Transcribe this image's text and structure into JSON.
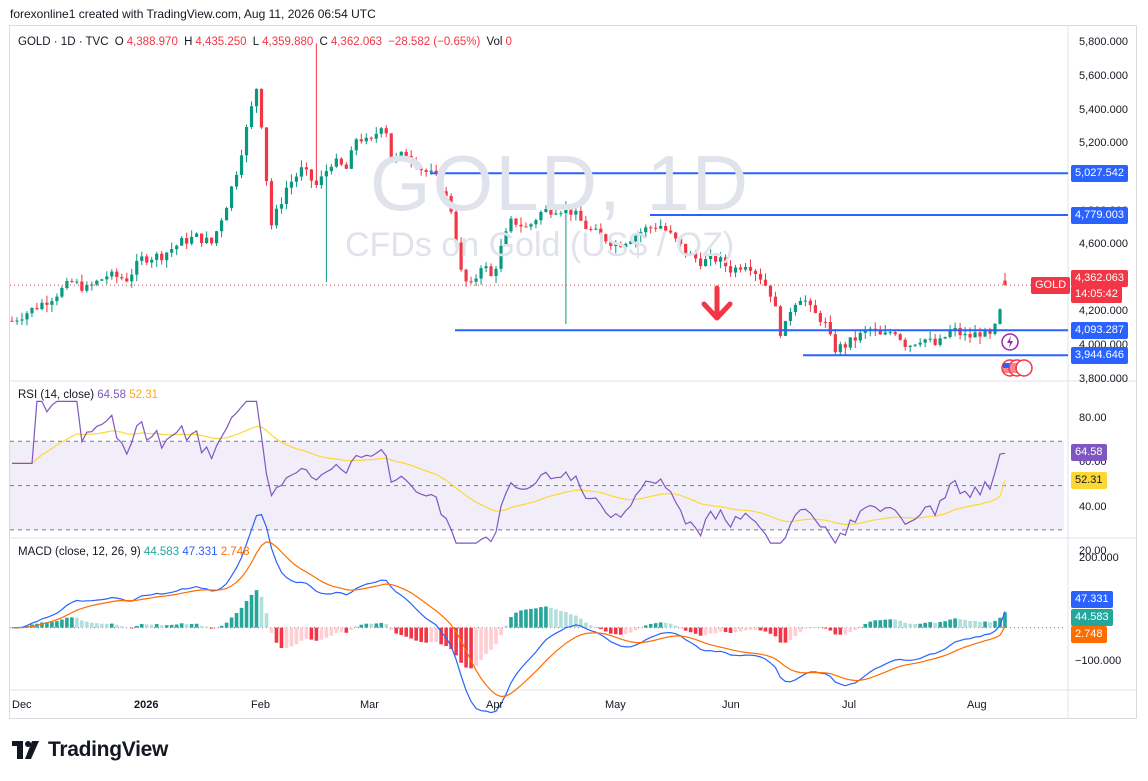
{
  "credit": "forexonline1 created with TradingView.com, Aug 11, 2026 06:54 UTC",
  "watermark": {
    "line1": "GOLD, 1D",
    "line2": "CFDs on Gold (US$ / OZ)"
  },
  "legend": {
    "symbol": "GOLD · 1D · TVC",
    "o_label": "O",
    "o_value": "4,388.970",
    "h_label": "H",
    "h_value": "4,435.250",
    "l_label": "L",
    "l_value": "4,359.880",
    "c_label": "C",
    "c_value": "4,362.063",
    "change": "−28.582 (−0.65%)",
    "vol_label": "Vol",
    "vol_value": "0"
  },
  "price_axis": {
    "ticks": [
      "5,800.000",
      "5,600.000",
      "5,400.000",
      "5,200.000",
      "4,800.000",
      "4,600.000",
      "4,400.000",
      "4,200.000",
      "4,000.000",
      "3,800.000"
    ],
    "levels": [
      {
        "label": "5,027.542",
        "color": "#2962ff"
      },
      {
        "label": "4,779.003",
        "color": "#2962ff"
      },
      {
        "label": "4,093.287",
        "color": "#2962ff"
      },
      {
        "label": "3,944.646",
        "color": "#2962ff"
      }
    ],
    "current": {
      "symbol": "GOLD",
      "price": "4,362.063",
      "countdown": "14:05:42",
      "color": "#f23645"
    }
  },
  "rsi": {
    "legend_name": "RSI (14, close)",
    "value": "64.58",
    "ma_value": "52.31",
    "ticks": [
      "80.00",
      "60.00",
      "40.00",
      "20.00"
    ],
    "colors": {
      "rsi": "#7e57c2",
      "ma": "#fdd835"
    }
  },
  "macd": {
    "legend_name": "MACD (close, 12, 26, 9)",
    "hist_value": "44.583",
    "macd_value": "47.331",
    "signal_value": "2.748",
    "ticks": [
      "200.000",
      "−100.000"
    ],
    "colors": {
      "macd": "#2962ff",
      "signal": "#ff6d00",
      "hist_pos": "#26a69a",
      "hist_neg": "#f23645"
    }
  },
  "x_axis": {
    "labels": [
      "Dec",
      "2026",
      "Feb",
      "Mar",
      "Apr",
      "May",
      "Jun",
      "Jul",
      "Aug"
    ]
  },
  "footer": {
    "brand": "TradingView"
  },
  "chart_data": {
    "type": "candlestick",
    "symbol": "GOLD",
    "timeframe": "1D",
    "ohlc_samples": [
      {
        "x": "Dec",
        "o": 4150,
        "c": 4180
      },
      {
        "x": "2026",
        "o": 4300,
        "c": 4350
      },
      {
        "x": "Jan-late",
        "o": 5300,
        "c": 5550
      },
      {
        "x": "Feb",
        "o": 4700,
        "c": 4900
      },
      {
        "x": "Mar",
        "o": 5200,
        "c": 5300
      },
      {
        "x": "Apr",
        "o": 4400,
        "c": 4750
      },
      {
        "x": "May",
        "o": 4700,
        "c": 4650
      },
      {
        "x": "Jun",
        "o": 4350,
        "c": 4050
      },
      {
        "x": "Jul",
        "o": 4100,
        "c": 4050
      },
      {
        "x": "Aug",
        "o": 4100,
        "c": 4388.97
      }
    ],
    "last": {
      "o": 4388.97,
      "h": 4435.25,
      "l": 4359.88,
      "c": 4362.063
    },
    "horizontal_levels": [
      5027.542,
      4779.003,
      4093.287,
      3944.646
    ],
    "ylim": [
      3750,
      5850
    ],
    "rsi_range": [
      20,
      90
    ],
    "rsi_bands": [
      70,
      50,
      30
    ]
  }
}
